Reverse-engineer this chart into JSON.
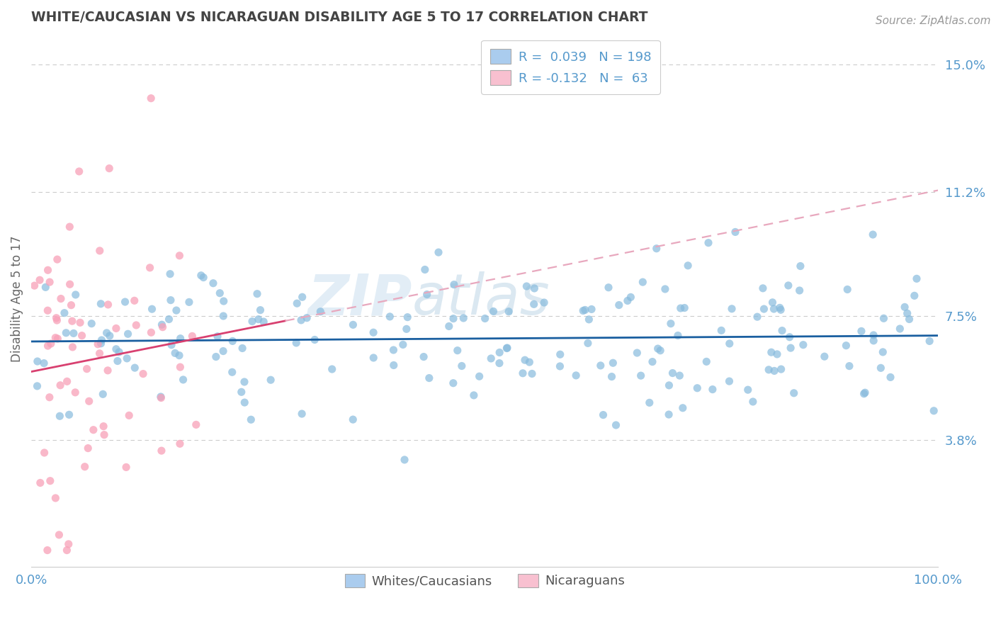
{
  "title": "WHITE/CAUCASIAN VS NICARAGUAN DISABILITY AGE 5 TO 17 CORRELATION CHART",
  "source": "Source: ZipAtlas.com",
  "ylabel": "Disability Age 5 to 17",
  "xlim": [
    0,
    1.0
  ],
  "ylim": [
    0.0,
    0.16
  ],
  "yticks": [
    0.038,
    0.075,
    0.112,
    0.15
  ],
  "ytick_labels": [
    "3.8%",
    "7.5%",
    "11.2%",
    "15.0%"
  ],
  "xtick_labels": [
    "0.0%",
    "100.0%"
  ],
  "blue_R": 0.039,
  "blue_N": 198,
  "pink_R": -0.132,
  "pink_N": 63,
  "blue_dot_color": "#88bbdd",
  "pink_dot_color": "#f8a0b8",
  "blue_legend_color": "#aaccee",
  "pink_legend_color": "#f8c0d0",
  "trend_blue": "#1a5fa0",
  "trend_pink_solid": "#d84070",
  "trend_pink_dash": "#e8a8be",
  "background": "#ffffff",
  "grid_color": "#cccccc",
  "title_color": "#444444",
  "axis_label_color": "#5599cc",
  "watermark_color": "#e0e8f0",
  "seed": 99
}
